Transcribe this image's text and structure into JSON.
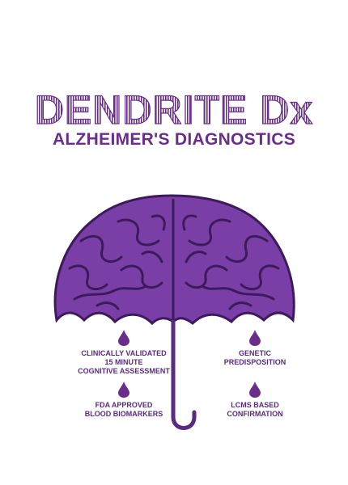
{
  "brand": {
    "logo_text": "DENDRITE Dx",
    "tagline": "ALZHEIMER'S DIAGNOSTICS"
  },
  "colors": {
    "brand_purple": "#6b2d8c",
    "brain_purple": "#7a3fa6",
    "brain_dark": "#3e1a5c",
    "text_purple": "#5a2a82"
  },
  "features": [
    {
      "lines": [
        "CLINICALLY VALIDATED",
        "15 MINUTE",
        "COGNITIVE ASSESSMENT"
      ],
      "icon": "drop-icon"
    },
    {
      "lines": [
        "GENETIC",
        "PREDISPOSITION"
      ],
      "icon": "drop-icon"
    },
    {
      "lines": [
        "FDA APPROVED",
        "BLOOD BIOMARKERS"
      ],
      "icon": "drop-icon"
    },
    {
      "lines": [
        "LCMS BASED",
        "CONFIRMATION"
      ],
      "icon": "drop-icon"
    }
  ]
}
